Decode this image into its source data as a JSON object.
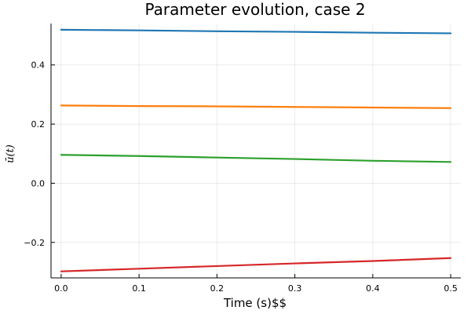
{
  "chart_data": {
    "type": "line",
    "title": "Parameter evolution, case 2",
    "xlabel": "Time (s)$$",
    "ylabel": "ū(t)",
    "xlim": [
      -0.013,
      0.513
    ],
    "ylim": [
      -0.32,
      0.54
    ],
    "grid": true,
    "legend": "none",
    "x": [
      0.0,
      0.1,
      0.2,
      0.3,
      0.4,
      0.5
    ],
    "x_ticks": [
      0.0,
      0.1,
      0.2,
      0.3,
      0.4,
      0.5
    ],
    "x_tick_labels": [
      "0.0",
      "0.1",
      "0.2",
      "0.3",
      "0.4",
      "0.5"
    ],
    "y_ticks": [
      -0.2,
      0.0,
      0.2,
      0.4
    ],
    "y_tick_labels": [
      "−0.2",
      "0.0",
      "0.2",
      "0.4"
    ],
    "series": [
      {
        "color": "#1f77b4",
        "values": [
          0.519,
          0.517,
          0.514,
          0.512,
          0.509,
          0.507
        ]
      },
      {
        "color": "#ff7f0e",
        "values": [
          0.263,
          0.261,
          0.26,
          0.258,
          0.256,
          0.254
        ]
      },
      {
        "color": "#2ca02c",
        "values": [
          0.096,
          0.092,
          0.087,
          0.082,
          0.076,
          0.072
        ]
      },
      {
        "color": "#d62728",
        "values": [
          -0.298,
          -0.289,
          -0.28,
          -0.271,
          -0.263,
          -0.253
        ]
      }
    ]
  }
}
